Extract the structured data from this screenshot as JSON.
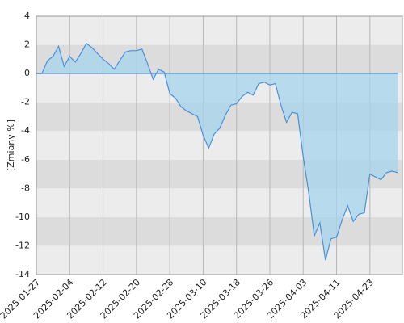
{
  "chart_data": {
    "type": "area",
    "y_label": "[Zmiany %]",
    "categories": [
      "2025-01-27",
      null,
      null,
      null,
      null,
      null,
      "2025-02-04",
      null,
      null,
      null,
      null,
      null,
      "2025-02-12",
      null,
      null,
      null,
      null,
      null,
      "2025-02-20",
      null,
      null,
      null,
      null,
      null,
      "2025-02-28",
      null,
      null,
      null,
      null,
      null,
      "2025-03-10",
      null,
      null,
      null,
      null,
      null,
      "2025-03-18",
      null,
      null,
      null,
      null,
      null,
      "2025-03-26",
      null,
      null,
      null,
      null,
      null,
      "2025-04-03",
      null,
      null,
      null,
      null,
      null,
      "2025-04-11",
      null,
      null,
      null,
      null,
      null,
      "2025-04-23",
      null,
      null,
      null,
      null,
      null
    ],
    "values": [
      0,
      0,
      0.9,
      1.2,
      1.9,
      0.5,
      1.2,
      0.8,
      1.4,
      2.1,
      1.8,
      1.4,
      1.0,
      0.7,
      0.3,
      0.9,
      1.5,
      1.6,
      1.6,
      1.7,
      0.7,
      -0.4,
      0.3,
      0.1,
      -1.4,
      -1.7,
      -2.3,
      -2.6,
      -2.8,
      -3.0,
      -4.3,
      -5.2,
      -4.2,
      -3.8,
      -2.9,
      -2.2,
      -2.1,
      -1.6,
      -1.3,
      -1.5,
      -0.7,
      -0.6,
      -0.8,
      -0.7,
      -2.2,
      -3.4,
      -2.7,
      -2.8,
      -5.8,
      -8.3,
      -11.3,
      -10.4,
      -13.0,
      -11.5,
      -11.4,
      -10.2,
      -9.2,
      -10.3,
      -9.8,
      -9.7,
      -7.0,
      -7.2,
      -7.4,
      -6.9,
      -6.8,
      -6.9
    ],
    "color": "#4a90d9",
    "fill_color": "#a6d6ec",
    "ylim": [
      -14,
      4
    ],
    "yticks": [
      -14,
      -12,
      -10,
      -8,
      -6,
      -4,
      -2,
      0,
      2,
      4
    ],
    "grid": true
  }
}
